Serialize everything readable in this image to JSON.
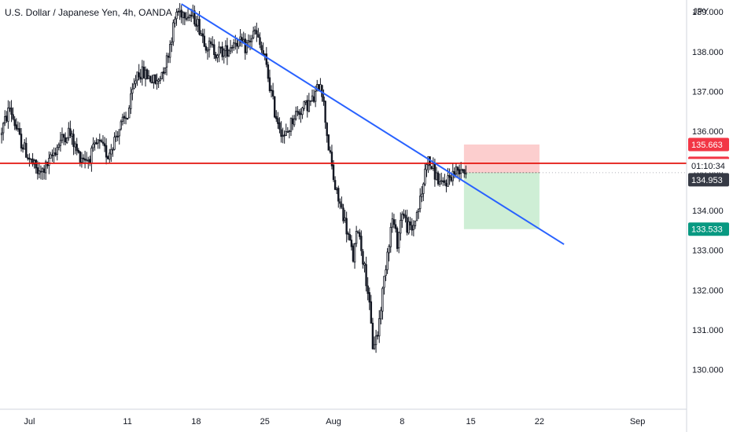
{
  "header": {
    "title": "U.S. Dollar / Japanese Yen, 4h, OANDA"
  },
  "currency_label": "JPY",
  "colors": {
    "candle": "#131722",
    "trendline": "#2962ff",
    "resistance": "#e3120b",
    "stop_zone": "#fbc5c5",
    "target_zone": "#c9ecd0",
    "badge_red": "#f23645",
    "badge_dark": "#363a45",
    "badge_green": "#089981",
    "axis": "#d1d4dc"
  },
  "price_badges": [
    {
      "label": "135.663",
      "value": 135.663,
      "style": "red"
    },
    {
      "label": "135.190",
      "value": 135.19,
      "style": "red"
    },
    {
      "label": "01:10:34",
      "value": 134.953,
      "style": "timer",
      "offset": -1
    },
    {
      "label": "134.953",
      "value": 134.953,
      "style": "dark",
      "offset": 1
    },
    {
      "label": "133.533",
      "value": 133.533,
      "style": "green"
    }
  ],
  "chart_data": {
    "type": "candlestick",
    "title": "U.S. Dollar / Japanese Yen, 4h, OANDA",
    "x_axis": {
      "ticks": [
        {
          "label": "Jul",
          "day": 0
        },
        {
          "label": "11",
          "day": 10
        },
        {
          "label": "18",
          "day": 17
        },
        {
          "label": "25",
          "day": 24
        },
        {
          "label": "Aug",
          "day": 31
        },
        {
          "label": "8",
          "day": 38
        },
        {
          "label": "15",
          "day": 45
        },
        {
          "label": "22",
          "day": 52
        },
        {
          "label": "Sep",
          "day": 62
        }
      ],
      "range_days": [
        -3,
        67
      ]
    },
    "y_axis": {
      "range": [
        129.0,
        139.3
      ],
      "ticks": [
        "139.000",
        "138.000",
        "137.000",
        "136.000",
        "135.000",
        "134.000",
        "133.000",
        "132.000",
        "131.000",
        "130.000"
      ]
    },
    "path_points": [
      [
        -3,
        135.9
      ],
      [
        -2,
        136.6
      ],
      [
        -1,
        135.8
      ],
      [
        0,
        135.3
      ],
      [
        1,
        134.9
      ],
      [
        2,
        135.2
      ],
      [
        3,
        135.7
      ],
      [
        4,
        136.0
      ],
      [
        5,
        135.4
      ],
      [
        6,
        135.3
      ],
      [
        7,
        135.7
      ],
      [
        8,
        135.4
      ],
      [
        9,
        136.0
      ],
      [
        10,
        136.4
      ],
      [
        11,
        137.5
      ],
      [
        12,
        137.4
      ],
      [
        13,
        137.2
      ],
      [
        14,
        137.8
      ],
      [
        15,
        139.0
      ],
      [
        16,
        139.0
      ],
      [
        17,
        138.8
      ],
      [
        18,
        138.2
      ],
      [
        19,
        138.0
      ],
      [
        20,
        138.0
      ],
      [
        21,
        138.3
      ],
      [
        22,
        138.1
      ],
      [
        23,
        138.5
      ],
      [
        24,
        137.8
      ],
      [
        25,
        136.5
      ],
      [
        26,
        135.8
      ],
      [
        27,
        136.4
      ],
      [
        28,
        136.6
      ],
      [
        29,
        136.8
      ],
      [
        29.7,
        137.3
      ],
      [
        30.5,
        135.6
      ],
      [
        31.2,
        134.5
      ],
      [
        32,
        133.9
      ],
      [
        33,
        132.8
      ],
      [
        33.5,
        133.6
      ],
      [
        34.5,
        132.0
      ],
      [
        35,
        130.6
      ],
      [
        35.5,
        130.9
      ],
      [
        36.5,
        133.0
      ],
      [
        37,
        133.8
      ],
      [
        37.5,
        133.2
      ],
      [
        38,
        134.0
      ],
      [
        38.5,
        133.6
      ],
      [
        39,
        133.5
      ],
      [
        40,
        134.4
      ],
      [
        40.5,
        135.3
      ],
      [
        41,
        135.1
      ],
      [
        42,
        134.6
      ],
      [
        43,
        134.9
      ],
      [
        44,
        135.1
      ],
      [
        44.5,
        135.0
      ]
    ],
    "trendline": {
      "start": {
        "day": 15.5,
        "price": 139.2
      },
      "end": {
        "day": 54.5,
        "price": 133.15
      }
    },
    "horizontal_lines": [
      {
        "price": 135.19
      }
    ],
    "position": {
      "direction": "short",
      "entry": 134.953,
      "stop": 135.663,
      "target": 133.533,
      "start_day": 44.3,
      "end_day": 52.0
    },
    "last_price": 134.953
  }
}
